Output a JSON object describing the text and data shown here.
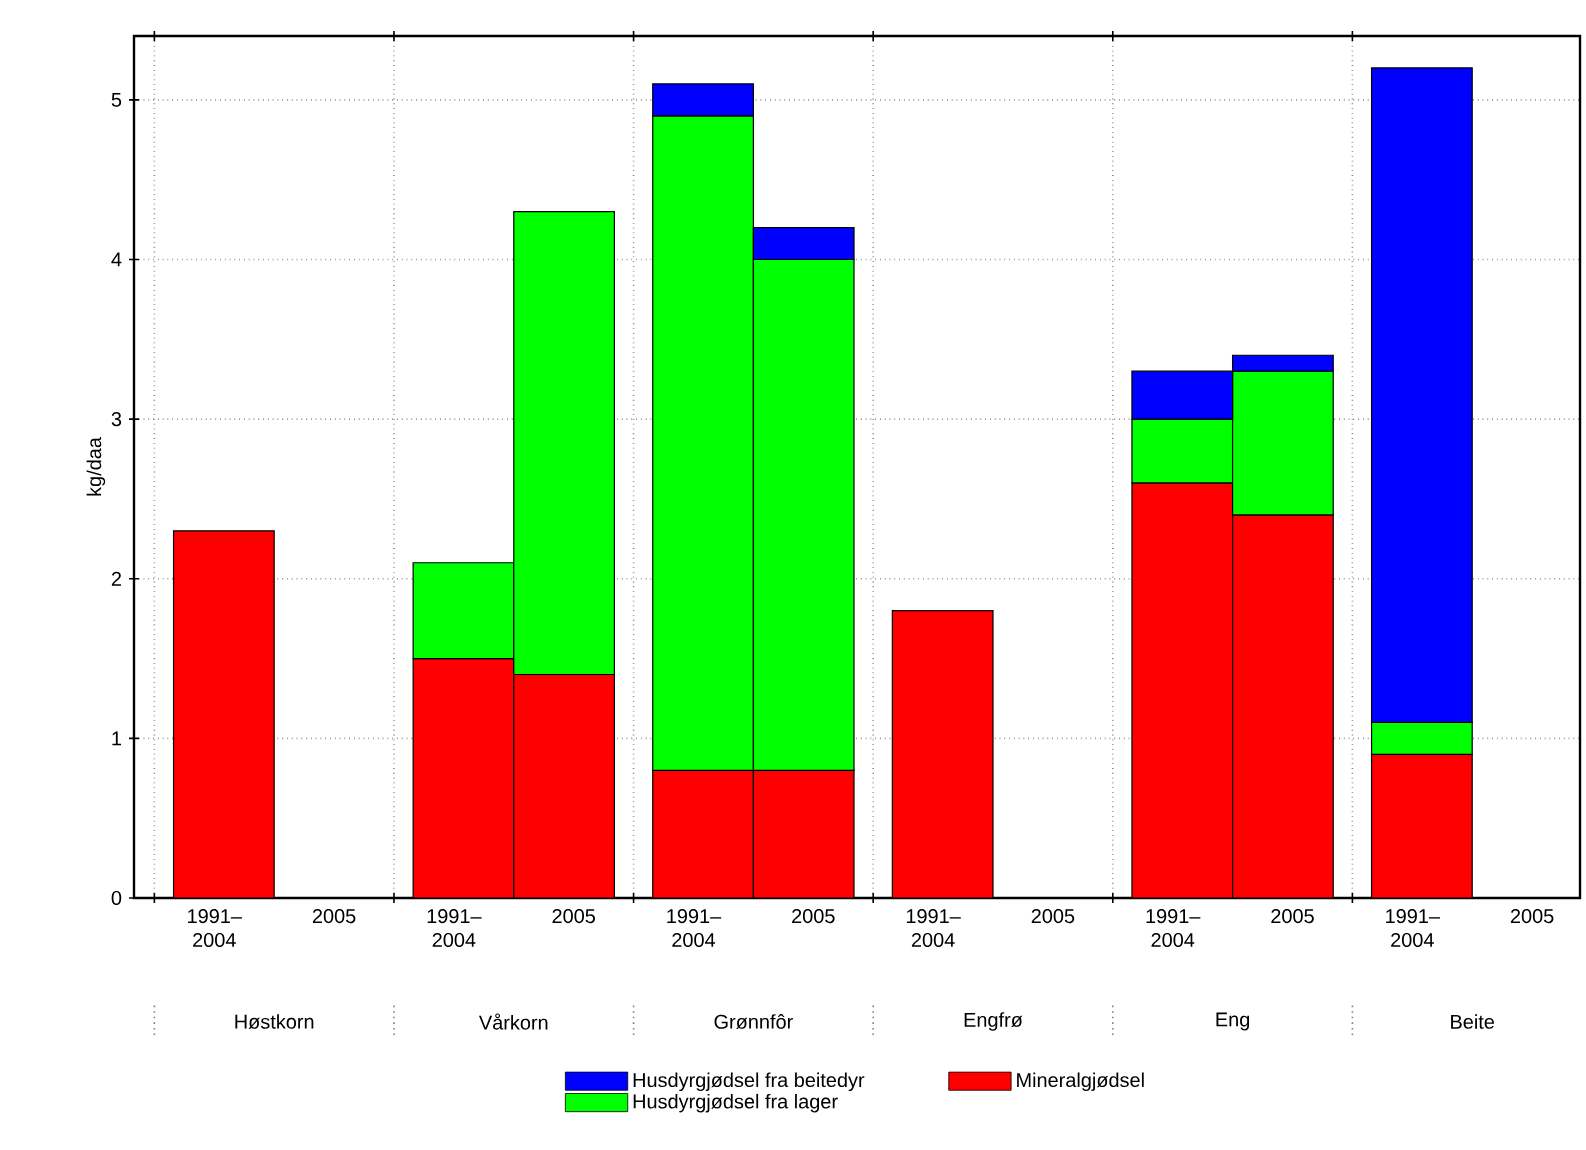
{
  "chart_data": {
    "type": "bar",
    "stacked": true,
    "ylabel": "kg/daa",
    "categories": [
      "1991– 2004",
      "2005",
      "1991– 2004",
      "2005",
      "1991– 2004",
      "2005",
      "1991– 2004",
      "2005",
      "1991– 2004",
      "2005",
      "1991– 2004",
      "2005"
    ],
    "annotations": [
      "Høstkorn",
      "Vårkorn",
      "Grønnfôr",
      "Engfrø",
      "Eng",
      "Beite"
    ],
    "series": [
      {
        "name": "Mineralgjødsel",
        "color": "#ff0000",
        "values": [
          2.3,
          null,
          1.5,
          1.4,
          0.8,
          0.8,
          1.8,
          null,
          2.6,
          2.4,
          0.9,
          null
        ]
      },
      {
        "name": "Husdyrgjødsel fra lager",
        "color": "#00ff00",
        "values": [
          null,
          null,
          0.6,
          2.9,
          4.1,
          3.2,
          null,
          null,
          0.4,
          0.9,
          0.2,
          null
        ]
      },
      {
        "name": "Husdyrgjødsel fra beitedyr",
        "color": "#0000ff",
        "values": [
          null,
          null,
          null,
          null,
          0.2,
          0.2,
          null,
          null,
          0.3,
          0.1,
          4.1,
          null
        ]
      }
    ],
    "ylim": [
      0,
      5.4
    ],
    "yticks": [
      0,
      1,
      2,
      3,
      4,
      5
    ],
    "grid": true,
    "legend": "bottom"
  }
}
